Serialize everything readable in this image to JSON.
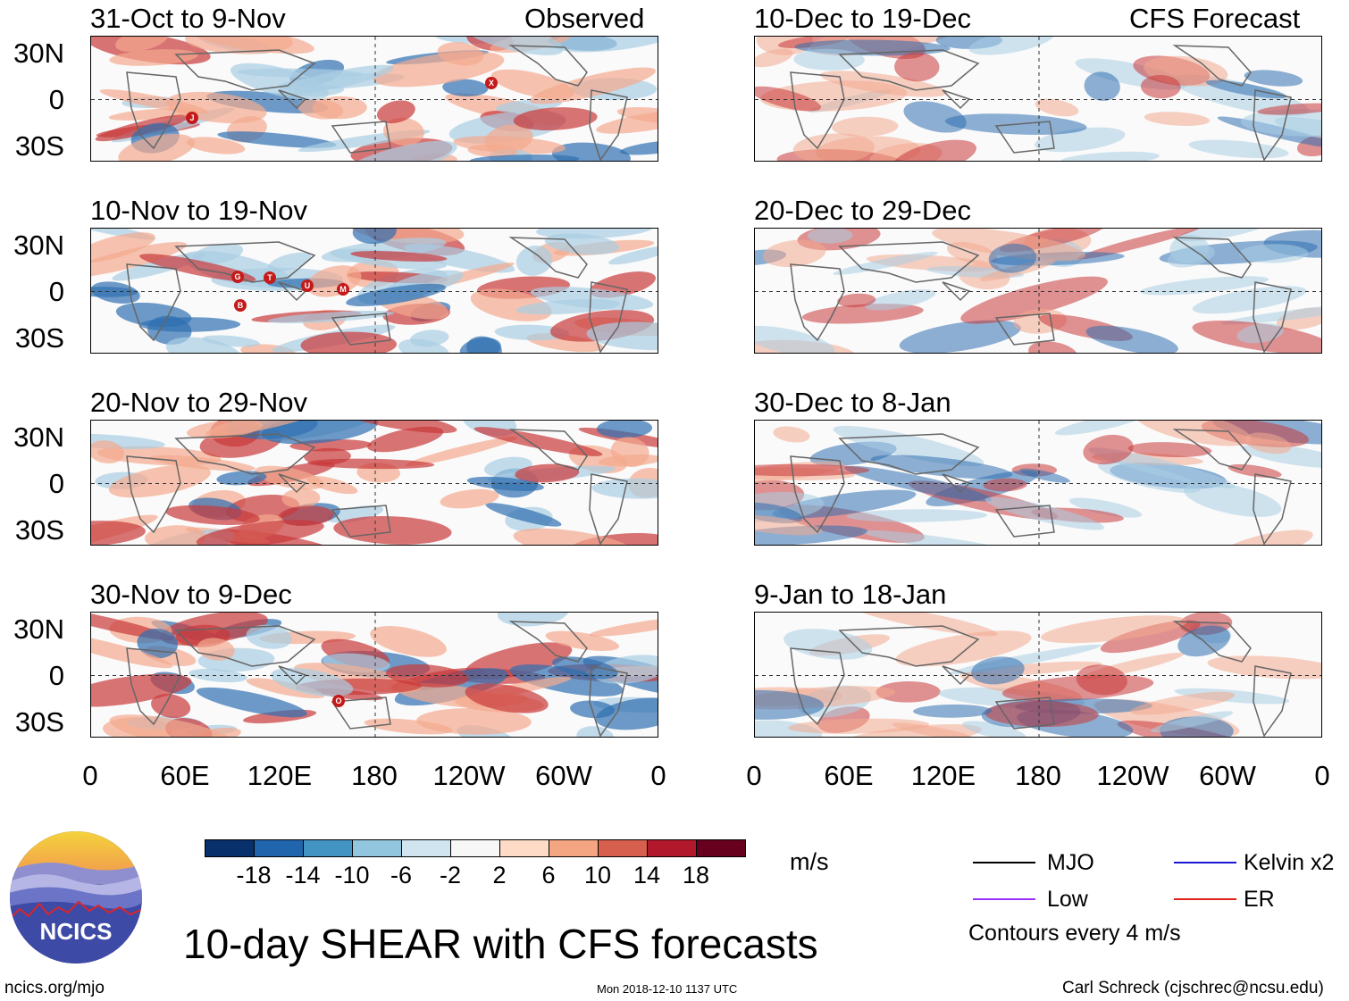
{
  "columns": {
    "left_label": "Observed",
    "right_label": "CFS Forecast"
  },
  "panels_left": [
    {
      "title": "31-Oct to 9-Nov"
    },
    {
      "title": "10-Nov to 19-Nov"
    },
    {
      "title": "20-Nov to 29-Nov"
    },
    {
      "title": "30-Nov to 9-Dec"
    }
  ],
  "panels_right": [
    {
      "title": "10-Dec to 19-Dec"
    },
    {
      "title": "20-Dec to 29-Dec"
    },
    {
      "title": "30-Dec to 8-Jan"
    },
    {
      "title": "9-Jan to 18-Jan"
    }
  ],
  "lat_labels": [
    "30N",
    "0",
    "30S"
  ],
  "lon_labels": [
    "0",
    "60E",
    "120E",
    "180",
    "120W",
    "60W",
    "0"
  ],
  "colorbar": {
    "colors": [
      "#08306b",
      "#2166ac",
      "#4393c3",
      "#92c5de",
      "#d1e5f0",
      "#f7f7f7",
      "#fddbc7",
      "#f4a582",
      "#d6604d",
      "#b2182b",
      "#67001f"
    ],
    "labels": [
      "-18",
      "-14",
      "-10",
      "-6",
      "-2",
      "2",
      "6",
      "10",
      "14",
      "18"
    ],
    "unit": "m/s"
  },
  "legend": {
    "mjo": "MJO",
    "kelvin": "Kelvin x2",
    "low": "Low",
    "er": "ER",
    "contours": "Contours every 4 m/s",
    "colors": {
      "mjo": "#000000",
      "kelvin": "#1a1ad6",
      "low": "#9b30ff",
      "er": "#e0201a"
    }
  },
  "logo": {
    "text": "NCICS"
  },
  "main_title": "10-day SHEAR with CFS forecasts",
  "footer": {
    "url": "ncics.org/mjo",
    "timestamp": "Mon 2018-12-10 1137 UTC",
    "credit": "Carl Schreck (cjschrec@ncsu.edu)"
  },
  "storms": [
    {
      "panel": 0,
      "letter": "J"
    },
    {
      "panel": 0,
      "letter": "X"
    },
    {
      "panel": 1,
      "letter": "G"
    },
    {
      "panel": 1,
      "letter": "T"
    },
    {
      "panel": 1,
      "letter": "U"
    },
    {
      "panel": 1,
      "letter": "M"
    },
    {
      "panel": 1,
      "letter": "B"
    },
    {
      "panel": 3,
      "letter": "O"
    }
  ],
  "shear_field_colors": {
    "red": "#c9393b",
    "lightred": "#f3a98f",
    "blue": "#2f6fb0",
    "lightblue": "#a9cde3"
  }
}
